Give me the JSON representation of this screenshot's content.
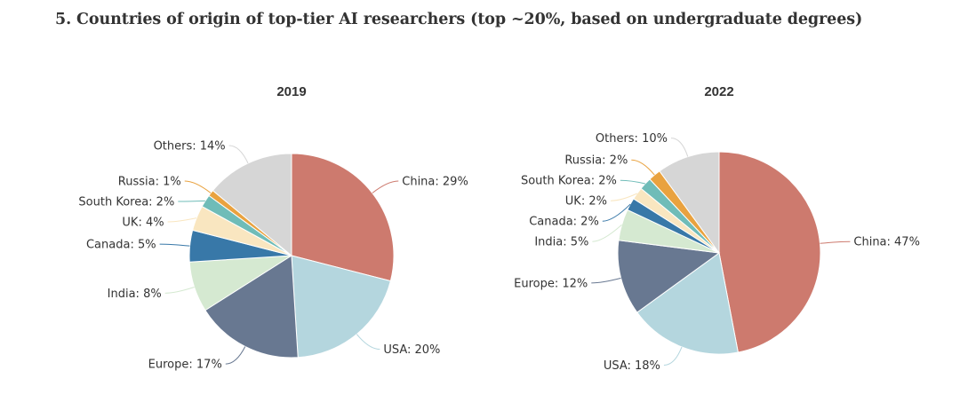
{
  "page": {
    "title": "5. Countries of origin of top-tier AI researchers (top ~20%, based on undergraduate degrees)"
  },
  "chart_data": [
    {
      "type": "pie",
      "title": "2019",
      "label_format": "{name}: {value}%",
      "slices": [
        {
          "name": "China",
          "value": 29,
          "color": "#cd7a6e"
        },
        {
          "name": "USA",
          "value": 20,
          "color": "#b4d6de"
        },
        {
          "name": "Europe",
          "value": 17,
          "color": "#687891"
        },
        {
          "name": "India",
          "value": 8,
          "color": "#d5e9d1"
        },
        {
          "name": "Canada",
          "value": 5,
          "color": "#3878a8"
        },
        {
          "name": "UK",
          "value": 4,
          "color": "#f9e6c0"
        },
        {
          "name": "South Korea",
          "value": 2,
          "color": "#6fbcb8"
        },
        {
          "name": "Russia",
          "value": 1,
          "color": "#e9a23f"
        },
        {
          "name": "Others",
          "value": 14,
          "color": "#d6d6d6"
        }
      ]
    },
    {
      "type": "pie",
      "title": "2022",
      "label_format": "{name}: {value}%",
      "slices": [
        {
          "name": "China",
          "value": 47,
          "color": "#cd7a6e"
        },
        {
          "name": "USA",
          "value": 18,
          "color": "#b4d6de"
        },
        {
          "name": "Europe",
          "value": 12,
          "color": "#687891"
        },
        {
          "name": "India",
          "value": 5,
          "color": "#d5e9d1"
        },
        {
          "name": "Canada",
          "value": 2,
          "color": "#3878a8"
        },
        {
          "name": "UK",
          "value": 2,
          "color": "#f9e6c0"
        },
        {
          "name": "South Korea",
          "value": 2,
          "color": "#6fbcb8"
        },
        {
          "name": "Russia",
          "value": 2,
          "color": "#e9a23f"
        },
        {
          "name": "Others",
          "value": 10,
          "color": "#d6d6d6"
        }
      ]
    }
  ]
}
